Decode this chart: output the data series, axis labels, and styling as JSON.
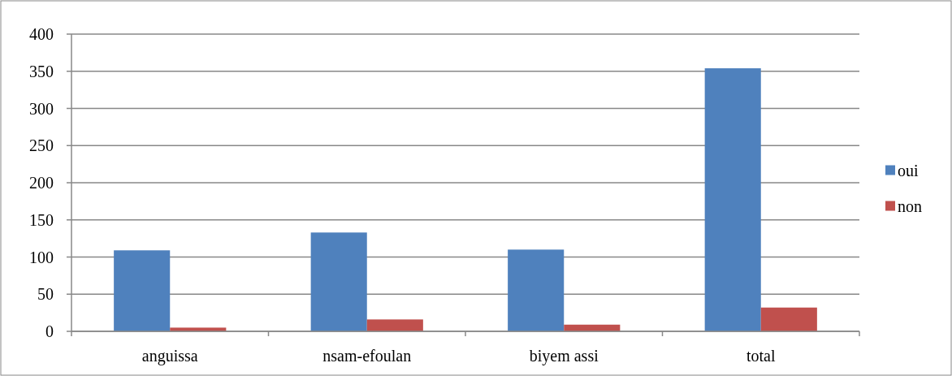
{
  "chart_data": {
    "type": "bar",
    "categories": [
      "anguissa",
      "nsam-efoulan",
      "biyem assi",
      "total"
    ],
    "series": [
      {
        "name": "oui",
        "color": "#4f81bd",
        "values": [
          109,
          133,
          110,
          354
        ]
      },
      {
        "name": "non",
        "color": "#c0504d",
        "values": [
          5,
          16,
          9,
          32
        ]
      }
    ],
    "ylim": [
      0,
      400
    ],
    "yticks": [
      0,
      50,
      100,
      150,
      200,
      250,
      300,
      350,
      400
    ],
    "grid": "y",
    "legend": "right"
  }
}
